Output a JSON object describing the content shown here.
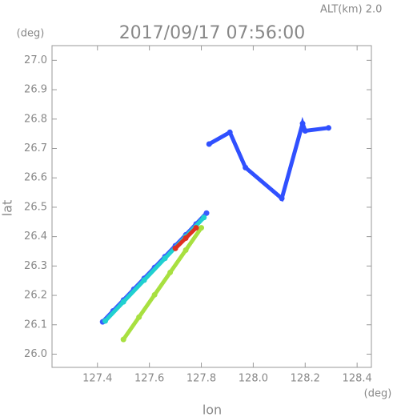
{
  "chart_data": {
    "type": "scatter",
    "title": "2017/09/17 07:56:00",
    "subtitle": "ALT(km) 2.0",
    "x_label": "lon",
    "y_label": "lat",
    "x_unit": "(deg)",
    "y_unit": "(deg)",
    "xlim": [
      127.225,
      128.455
    ],
    "ylim": [
      25.955,
      27.05
    ],
    "xticks": [
      127.4,
      127.6,
      127.8,
      {
        "value": 128.0,
        "label": "128.0"
      },
      128.2,
      128.4
    ],
    "yticks": [
      {
        "value": 26.0,
        "label": "26.0"
      },
      26.1,
      26.2,
      26.3,
      26.4,
      26.5,
      26.6,
      26.7,
      26.8,
      26.9,
      {
        "value": 27.0,
        "label": "27.0"
      }
    ],
    "series": [
      {
        "color": "#3a5cff",
        "x": [
          127.42,
          127.46,
          127.5,
          127.54,
          127.58,
          127.62,
          127.66,
          127.7,
          127.74,
          127.78,
          127.82
        ],
        "y": [
          26.11,
          26.147,
          26.184,
          26.221,
          26.258,
          26.295,
          26.332,
          26.369,
          26.406,
          26.443,
          26.48
        ]
      },
      {
        "color": "#20d0d0",
        "x": [
          127.43,
          127.5,
          127.58,
          127.66,
          127.74,
          127.81
        ],
        "y": [
          26.113,
          26.178,
          26.252,
          26.326,
          26.4,
          26.465
        ]
      },
      {
        "color": "#a8e040",
        "x": [
          127.5,
          127.56,
          127.62,
          127.68,
          127.74,
          127.8
        ],
        "y": [
          26.05,
          26.126,
          26.202,
          26.278,
          26.354,
          26.43
        ]
      },
      {
        "color": "#e03020",
        "x": [
          127.7,
          127.74,
          127.78
        ],
        "y": [
          26.36,
          26.395,
          26.43
        ]
      },
      {
        "color": "#3050ff",
        "x": [
          127.83,
          127.91,
          127.97,
          128.11,
          128.19,
          128.2,
          128.29
        ],
        "y": [
          26.715,
          26.755,
          26.635,
          26.53,
          26.785,
          26.76,
          26.77
        ]
      }
    ]
  }
}
